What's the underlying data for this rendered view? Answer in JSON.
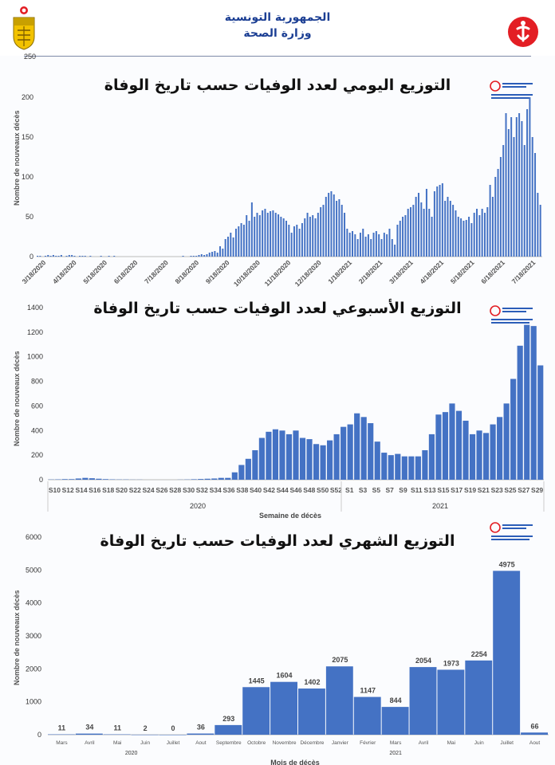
{
  "header": {
    "line1": "الجمهورية التونسية",
    "line2": "وزارة الصحة",
    "stray_tick": "250"
  },
  "colors": {
    "bar": "#4472c4",
    "title": "#1c3f94",
    "logo_red": "#e31e24",
    "emblem_gold": "#e6b800"
  },
  "chart_data": [
    {
      "type": "bar",
      "title": "التوزيع اليومي لعدد الوفيات حسب تاريخ الوفاة",
      "ylabel": "Nombre de nouveaux décès",
      "xlabel": "",
      "ylim": [
        0,
        200
      ],
      "yticks": [
        0,
        50,
        100,
        150,
        200
      ],
      "xtick_labels": [
        "3/18/2020",
        "4/18/2020",
        "5/18/2020",
        "6/18/2020",
        "7/18/2020",
        "8/18/2020",
        "9/18/2020",
        "10/18/2020",
        "11/18/2020",
        "12/18/2020",
        "1/18/2021",
        "2/18/2021",
        "3/18/2021",
        "4/18/2021",
        "5/18/2021",
        "6/18/2021",
        "7/18/2021"
      ],
      "series": [
        {
          "values": [
            1,
            1,
            0,
            1,
            2,
            1,
            2,
            1,
            1,
            2,
            0,
            1,
            2,
            2,
            1,
            0,
            1,
            1,
            1,
            0,
            1,
            0,
            0,
            0,
            1,
            0,
            0,
            1,
            0,
            1,
            0,
            0,
            0,
            0,
            0,
            0,
            0,
            0,
            0,
            0,
            0,
            0,
            0,
            0,
            0,
            0,
            0,
            0,
            0,
            0,
            0,
            0,
            0,
            0,
            0,
            1,
            0,
            0,
            1,
            1,
            1,
            2,
            3,
            2,
            3,
            5,
            6,
            7,
            5,
            13,
            10,
            22,
            25,
            30,
            24,
            35,
            38,
            42,
            40,
            52,
            45,
            68,
            50,
            55,
            52,
            58,
            60,
            55,
            57,
            58,
            55,
            53,
            50,
            48,
            45,
            40,
            30,
            38,
            40,
            35,
            42,
            48,
            55,
            50,
            52,
            48,
            55,
            62,
            65,
            75,
            80,
            82,
            78,
            70,
            72,
            65,
            55,
            35,
            30,
            32,
            28,
            22,
            30,
            35,
            25,
            28,
            22,
            30,
            32,
            28,
            22,
            30,
            28,
            35,
            22,
            15,
            40,
            45,
            50,
            52,
            60,
            62,
            65,
            75,
            80,
            68,
            60,
            85,
            60,
            50,
            82,
            88,
            90,
            92,
            70,
            75,
            70,
            65,
            58,
            50,
            48,
            45,
            46,
            50,
            42,
            55,
            60,
            52,
            60,
            55,
            62,
            90,
            75,
            100,
            110,
            125,
            140,
            180,
            160,
            175,
            150,
            175,
            180,
            170,
            140,
            185,
            200,
            150,
            130,
            80,
            65
          ]
        }
      ]
    },
    {
      "type": "bar",
      "title": "التوزيع الأسبوعي لعدد الوفيات حسب تاريخ الوفاة",
      "ylabel": "Nombre de nouveaux décès",
      "xlabel": "Semaine de décès",
      "ylim": [
        0,
        1400
      ],
      "yticks": [
        0,
        200,
        400,
        600,
        800,
        1000,
        1200,
        1400
      ],
      "week_labels": [
        "S10",
        "S12",
        "S14",
        "S16",
        "S18",
        "S20",
        "S22",
        "S24",
        "S26",
        "S28",
        "S30",
        "S32",
        "S34",
        "S36",
        "S38",
        "S40",
        "S42",
        "S44",
        "S46",
        "S48",
        "S50",
        "S52",
        "S1",
        "S3",
        "S5",
        "S7",
        "S9",
        "S11",
        "S13",
        "S15",
        "S17",
        "S19",
        "S21",
        "S23",
        "S25",
        "S27",
        "S29"
      ],
      "year_labels": [
        "2020",
        "2021"
      ],
      "series": [
        {
          "values": [
            2,
            3,
            5,
            5,
            10,
            15,
            12,
            8,
            5,
            3,
            2,
            2,
            1,
            1,
            0,
            0,
            0,
            0,
            0,
            1,
            2,
            4,
            6,
            8,
            10,
            15,
            15,
            60,
            120,
            170,
            240,
            340,
            390,
            410,
            400,
            370,
            400,
            340,
            330,
            290,
            280,
            320,
            370,
            430,
            450,
            540,
            510,
            460,
            310,
            220,
            200,
            210,
            190,
            190,
            190,
            240,
            370,
            530,
            550,
            620,
            560,
            480,
            370,
            400,
            380,
            450,
            510,
            620,
            820,
            1090,
            1260,
            1250,
            930
          ]
        }
      ]
    },
    {
      "type": "bar",
      "title": "التوزيع الشهري لعدد الوفيات حسب تاريخ الوفاة",
      "ylabel": "Nombre de nouveaux décès",
      "xlabel": "Mois de décès",
      "ylim": [
        0,
        6000
      ],
      "yticks": [
        0,
        1000,
        2000,
        3000,
        4000,
        5000,
        6000
      ],
      "categories": [
        "Mars",
        "Avril",
        "Mai",
        "Juin",
        "Juillet",
        "Aout",
        "Septembre",
        "Octobre",
        "Novembre",
        "Décembre",
        "Janvier",
        "Février",
        "Mars",
        "Avril",
        "Mai",
        "Juin",
        "Juillet",
        "Aout"
      ],
      "year_labels": [
        "2020",
        "2021"
      ],
      "values": [
        11,
        34,
        11,
        2,
        0,
        36,
        293,
        1445,
        1604,
        1402,
        2075,
        1147,
        844,
        2054,
        1973,
        2254,
        4975,
        66
      ],
      "data_labels": [
        "11",
        "34",
        "11",
        "2",
        "0",
        "36",
        "293",
        "1445",
        "1604",
        "1402",
        "2075",
        "1147",
        "844",
        "2054",
        "1973",
        "2254",
        "4975",
        "66"
      ]
    }
  ]
}
